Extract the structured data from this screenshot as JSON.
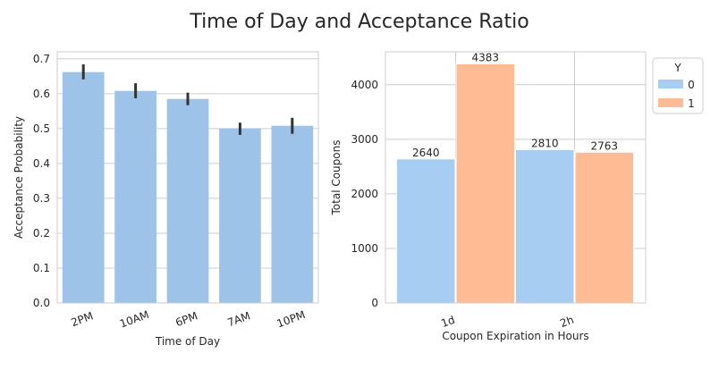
{
  "figure": {
    "suptitle": "Time of Day and Acceptance Ratio"
  },
  "chart_data": [
    {
      "type": "bar",
      "title": "",
      "xlabel": "Time of Day",
      "ylabel": "Acceptance Probability",
      "categories": [
        "2PM",
        "10AM",
        "6PM",
        "7AM",
        "10PM"
      ],
      "values": [
        0.662,
        0.608,
        0.585,
        0.5,
        0.508
      ],
      "error_bars": [
        [
          0.641,
          0.684
        ],
        [
          0.587,
          0.63
        ],
        [
          0.567,
          0.603
        ],
        [
          0.482,
          0.517
        ],
        [
          0.485,
          0.531
        ]
      ],
      "ylim": [
        0,
        0.72
      ],
      "yticks": [
        0.0,
        0.1,
        0.2,
        0.3,
        0.4,
        0.5,
        0.6,
        0.7
      ],
      "ytick_labels": [
        "0.0",
        "0.1",
        "0.2",
        "0.3",
        "0.4",
        "0.5",
        "0.6",
        "0.7"
      ],
      "grid": "y",
      "colors": {
        "bar": "#9dc3e8",
        "error": "#333333"
      }
    },
    {
      "type": "bar",
      "title": "",
      "xlabel": "Coupon Expiration in Hours",
      "ylabel": "Total Coupons",
      "categories": [
        "1d",
        "2h"
      ],
      "series": [
        {
          "name": "0",
          "values": [
            2640,
            2810
          ],
          "color": "#a6cdf2"
        },
        {
          "name": "1",
          "values": [
            4383,
            2763
          ],
          "color": "#ffbb94"
        }
      ],
      "data_labels": [
        "2640",
        "4383",
        "2810",
        "2763"
      ],
      "legend": {
        "title": "Y",
        "placement": "outside-top-right"
      },
      "ylim": [
        0,
        4602
      ],
      "yticks": [
        0,
        1000,
        2000,
        3000,
        4000
      ],
      "ytick_labels": [
        "0",
        "1000",
        "2000",
        "3000",
        "4000"
      ],
      "grid": "both"
    }
  ]
}
